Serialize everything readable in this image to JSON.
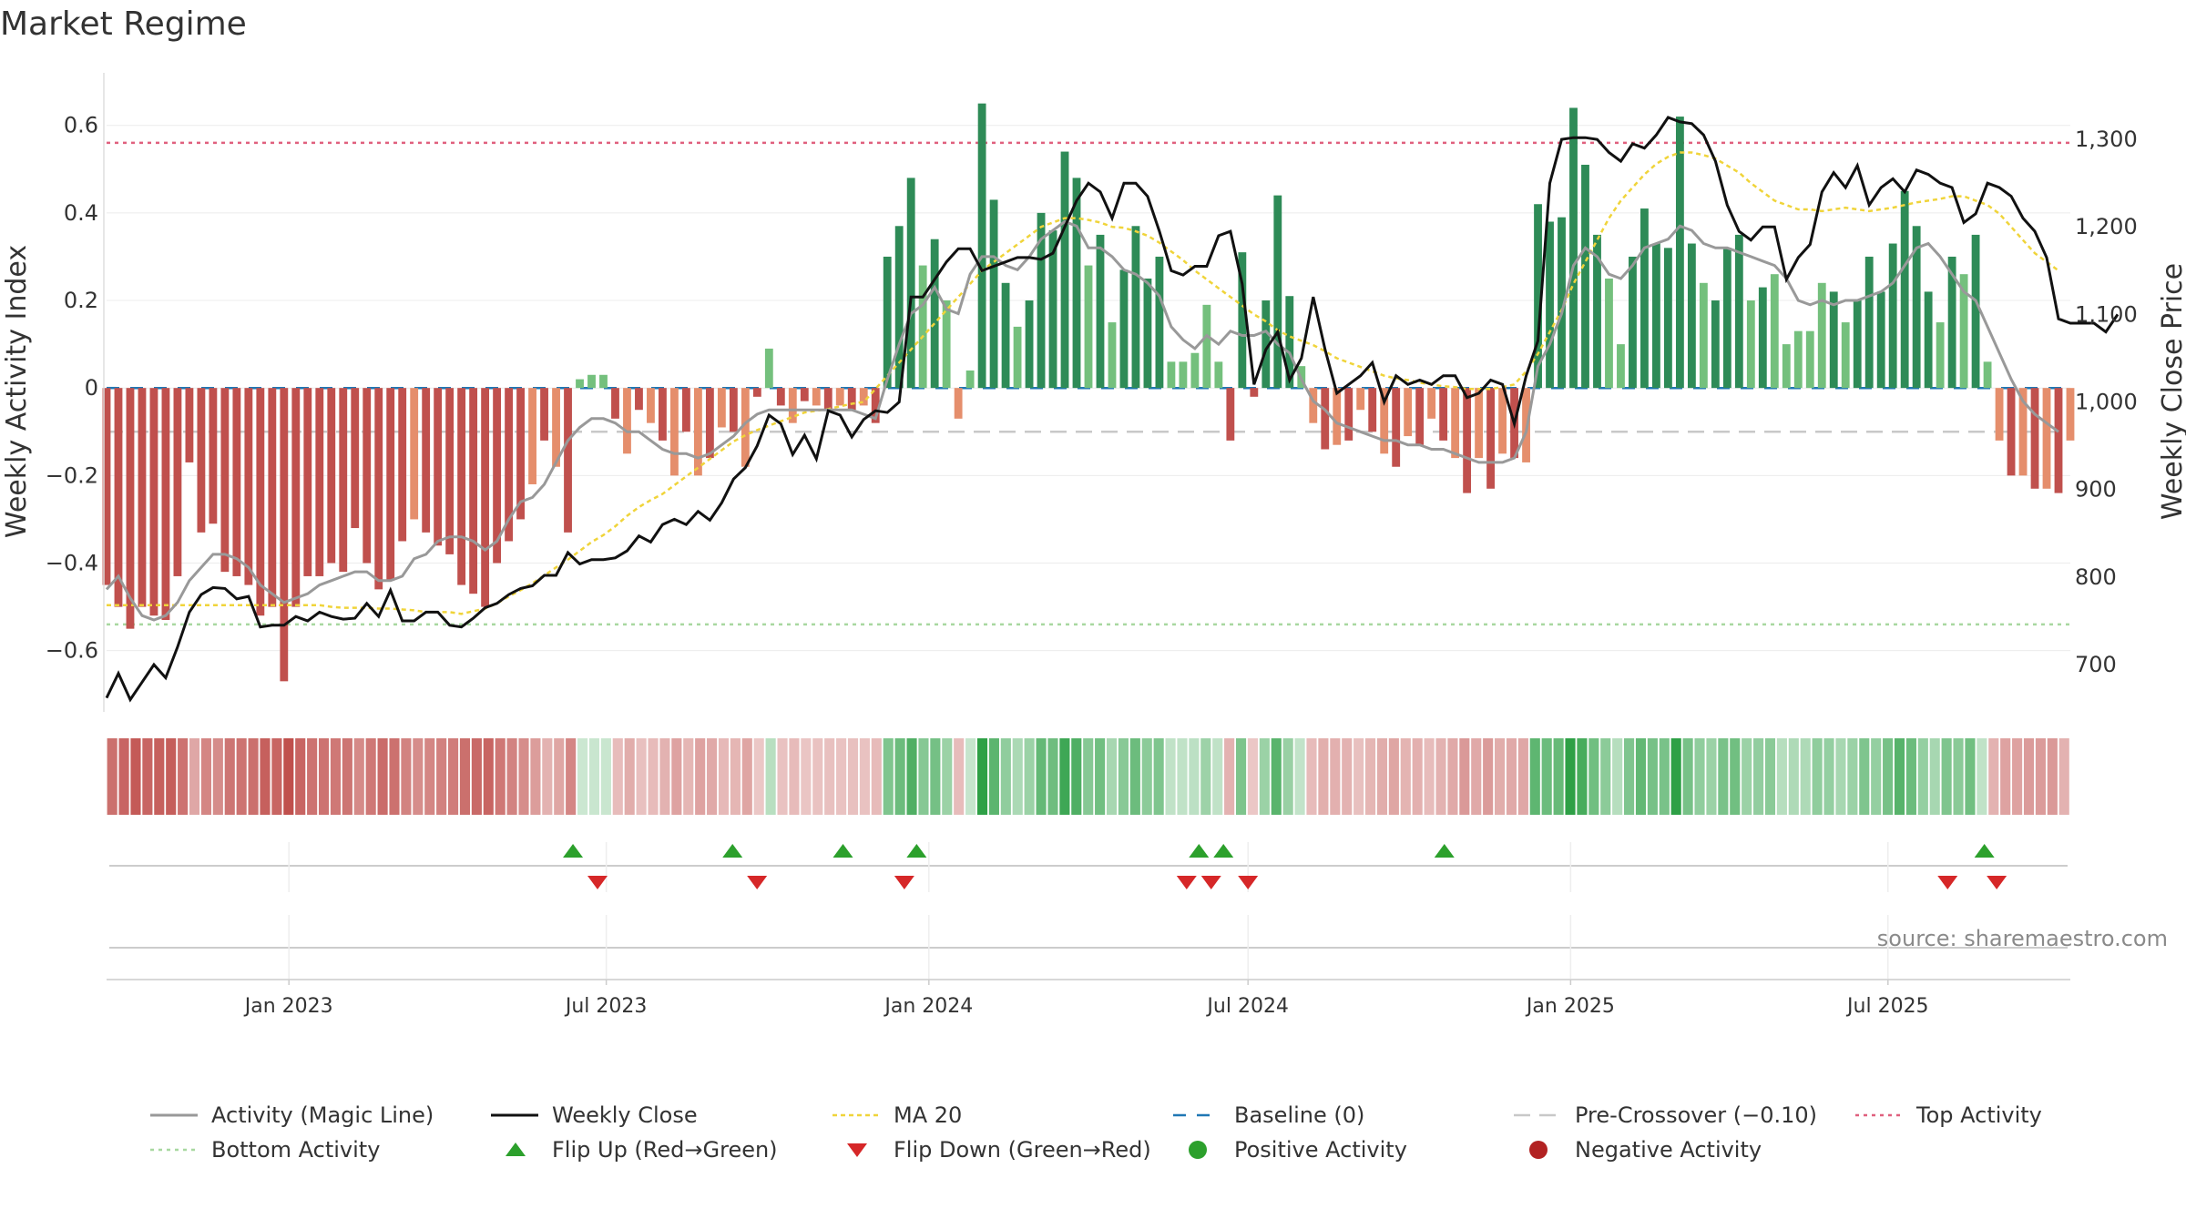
{
  "chart_data": {
    "type": "bar",
    "title": "Market Regime",
    "ylabel_left": "Weekly Activity Index",
    "ylabel_right": "Weekly Close Price",
    "source_text": "source: sharemaestro.com",
    "y_left": {
      "min": -0.74,
      "max": 0.72,
      "ticks": [
        0.6,
        0.4,
        0.2,
        0,
        -0.2,
        -0.4,
        -0.6
      ],
      "tick_labels": [
        "0.6",
        "0.4",
        "0.2",
        "0",
        "−0.2",
        "−0.4",
        "−0.6"
      ]
    },
    "y_right": {
      "min": 646,
      "max": 1376,
      "ticks": [
        1300,
        1200,
        1100,
        1000,
        900,
        800,
        700
      ],
      "tick_labels": [
        "1,300",
        "1,200",
        "1,100",
        "1,000",
        "900",
        "800",
        "700"
      ]
    },
    "date_axis": {
      "start": "2022-09-19",
      "end": "2025-10-13",
      "ticks": [
        "2023-01-01",
        "2023-07-01",
        "2024-01-01",
        "2024-07-01",
        "2025-01-01",
        "2025-07-01"
      ],
      "tick_labels": [
        "Jan 2023",
        "Jul 2023",
        "Jan 2024",
        "Jul 2024",
        "Jan 2025",
        "Jul 2025"
      ]
    },
    "reference_lines": {
      "top_activity": 0.56,
      "bottom_activity": -0.54,
      "pre_crossover": -0.1,
      "baseline": 0
    },
    "colors": {
      "strong_red": "#c0504d",
      "light_red": "#e58e6c",
      "strong_green": "#2e8b57",
      "light_green": "#74c07d",
      "magic_line": "#999999",
      "close": "#111111",
      "ma20": "#f0d43a",
      "baseline": "#1f77b4",
      "pre_crossover": "#c8c8c8",
      "top_activity": "#e0607e",
      "bottom_activity": "#a8d8a0",
      "flip_up": "#2ca02c",
      "flip_down": "#d62728",
      "positive_dot": "#2ca02c",
      "negative_dot": "#b22222"
    },
    "series": [
      {
        "name": "Weekly Activity Index",
        "type": "bar",
        "values": [
          -0.45,
          -0.5,
          -0.55,
          -0.5,
          -0.52,
          -0.53,
          -0.43,
          -0.17,
          -0.33,
          -0.31,
          -0.42,
          -0.43,
          -0.45,
          -0.52,
          -0.5,
          -0.67,
          -0.5,
          -0.43,
          -0.43,
          -0.4,
          -0.42,
          -0.32,
          -0.4,
          -0.46,
          -0.44,
          -0.35,
          -0.3,
          -0.33,
          -0.36,
          -0.38,
          -0.45,
          -0.47,
          -0.5,
          -0.4,
          -0.35,
          -0.3,
          -0.22,
          -0.12,
          -0.18,
          -0.33,
          0.02,
          0.03,
          0.03,
          -0.07,
          -0.15,
          -0.05,
          -0.08,
          -0.12,
          -0.2,
          -0.1,
          -0.2,
          -0.16,
          -0.09,
          -0.1,
          -0.18,
          -0.02,
          0.09,
          -0.04,
          -0.08,
          -0.03,
          -0.04,
          -0.05,
          -0.04,
          -0.05,
          -0.04,
          -0.08,
          0.3,
          0.37,
          0.48,
          0.28,
          0.34,
          0.2,
          -0.07,
          0.04,
          0.65,
          0.43,
          0.24,
          0.14,
          0.2,
          0.4,
          0.36,
          0.54,
          0.48,
          0.28,
          0.35,
          0.15,
          0.27,
          0.37,
          0.25,
          0.3,
          0.06,
          0.06,
          0.08,
          0.19,
          0.06,
          -0.12,
          0.31,
          -0.02,
          0.2,
          0.44,
          0.21,
          0.05,
          -0.08,
          -0.14,
          -0.13,
          -0.12,
          -0.05,
          -0.1,
          -0.15,
          -0.18,
          -0.11,
          -0.13,
          -0.07,
          -0.12,
          -0.16,
          -0.24,
          -0.16,
          -0.23,
          -0.15,
          -0.16,
          -0.17,
          0.42,
          0.38,
          0.39,
          0.64,
          0.51,
          0.35,
          0.25,
          0.1,
          0.3,
          0.41,
          0.33,
          0.32,
          0.62,
          0.33,
          0.24,
          0.2,
          0.32,
          0.35,
          0.2,
          0.23,
          0.26,
          0.1,
          0.13,
          0.13,
          0.24,
          0.22,
          0.15,
          0.2,
          0.3,
          0.22,
          0.33,
          0.45,
          0.37,
          0.22,
          0.15,
          0.3,
          0.26,
          0.35,
          0.06,
          -0.12,
          -0.2,
          -0.2,
          -0.23,
          -0.23,
          -0.24,
          -0.12
        ]
      },
      {
        "name": "Activity (Magic Line)",
        "type": "line",
        "values": [
          -0.46,
          -0.43,
          -0.48,
          -0.52,
          -0.53,
          -0.52,
          -0.49,
          -0.44,
          -0.41,
          -0.38,
          -0.38,
          -0.39,
          -0.41,
          -0.45,
          -0.47,
          -0.49,
          -0.48,
          -0.47,
          -0.45,
          -0.44,
          -0.43,
          -0.42,
          -0.42,
          -0.44,
          -0.44,
          -0.43,
          -0.39,
          -0.38,
          -0.35,
          -0.34,
          -0.34,
          -0.35,
          -0.37,
          -0.35,
          -0.3,
          -0.26,
          -0.25,
          -0.22,
          -0.17,
          -0.12,
          -0.09,
          -0.07,
          -0.07,
          -0.08,
          -0.1,
          -0.1,
          -0.12,
          -0.14,
          -0.15,
          -0.15,
          -0.16,
          -0.15,
          -0.13,
          -0.11,
          -0.08,
          -0.06,
          -0.05,
          -0.05,
          -0.05,
          -0.05,
          -0.05,
          -0.05,
          -0.05,
          -0.05,
          -0.06,
          -0.07,
          0.02,
          0.1,
          0.17,
          0.19,
          0.23,
          0.18,
          0.17,
          0.26,
          0.3,
          0.3,
          0.28,
          0.27,
          0.3,
          0.34,
          0.36,
          0.38,
          0.37,
          0.32,
          0.32,
          0.3,
          0.27,
          0.26,
          0.24,
          0.21,
          0.14,
          0.11,
          0.09,
          0.12,
          0.1,
          0.13,
          0.12,
          0.12,
          0.13,
          0.1,
          0.08,
          0.02,
          -0.03,
          -0.05,
          -0.08,
          -0.09,
          -0.1,
          -0.11,
          -0.12,
          -0.12,
          -0.13,
          -0.13,
          -0.14,
          -0.14,
          -0.15,
          -0.16,
          -0.17,
          -0.17,
          -0.17,
          -0.16,
          -0.1,
          0.05,
          0.1,
          0.17,
          0.28,
          0.32,
          0.3,
          0.26,
          0.25,
          0.28,
          0.32,
          0.33,
          0.34,
          0.37,
          0.36,
          0.33,
          0.32,
          0.32,
          0.31,
          0.3,
          0.29,
          0.28,
          0.25,
          0.2,
          0.19,
          0.2,
          0.19,
          0.2,
          0.2,
          0.21,
          0.22,
          0.24,
          0.28,
          0.32,
          0.33,
          0.3,
          0.26,
          0.22,
          0.2,
          0.14,
          0.08,
          0.02,
          -0.03,
          -0.06,
          -0.08,
          -0.1
        ]
      },
      {
        "name": "Weekly Close",
        "type": "line",
        "axis": "right",
        "values": [
          662,
          690,
          660,
          680,
          700,
          685,
          720,
          760,
          780,
          788,
          787,
          775,
          778,
          743,
          745,
          745,
          755,
          750,
          760,
          755,
          752,
          753,
          770,
          755,
          785,
          750,
          750,
          760,
          760,
          745,
          743,
          753,
          765,
          770,
          780,
          787,
          790,
          802,
          802,
          828,
          815,
          820,
          820,
          822,
          830,
          847,
          840,
          860,
          866,
          860,
          875,
          865,
          885,
          912,
          925,
          950,
          985,
          975,
          940,
          962,
          935,
          990,
          985,
          960,
          980,
          990,
          988,
          1000,
          1120,
          1120,
          1140,
          1160,
          1175,
          1175,
          1150,
          1155,
          1160,
          1165,
          1165,
          1163,
          1170,
          1200,
          1230,
          1250,
          1240,
          1210,
          1250,
          1250,
          1235,
          1195,
          1150,
          1145,
          1155,
          1155,
          1190,
          1195,
          1135,
          1020,
          1060,
          1080,
          1025,
          1050,
          1120,
          1060,
          1010,
          1020,
          1030,
          1045,
          1000,
          1030,
          1020,
          1025,
          1020,
          1030,
          1030,
          1005,
          1010,
          1025,
          1020,
          975,
          1030,
          1070,
          1250,
          1300,
          1302,
          1302,
          1300,
          1285,
          1275,
          1295,
          1290,
          1305,
          1325,
          1320,
          1318,
          1305,
          1275,
          1225,
          1195,
          1185,
          1200,
          1200,
          1140,
          1165,
          1180,
          1240,
          1262,
          1245,
          1270,
          1225,
          1245,
          1255,
          1240,
          1265,
          1260,
          1250,
          1245,
          1205,
          1215,
          1250,
          1245,
          1235,
          1210,
          1195,
          1165,
          1095,
          1090,
          1090,
          1090,
          1080,
          1100
        ]
      },
      {
        "name": "MA 20",
        "type": "line",
        "axis": "right",
        "values": [
          768,
          768,
          768,
          768,
          768,
          768,
          768,
          768,
          768,
          768,
          768,
          768,
          768,
          768,
          768,
          768,
          768,
          768,
          768,
          766,
          765,
          765,
          765,
          764,
          764,
          763,
          762,
          760,
          760,
          760,
          758,
          761,
          764,
          770,
          778,
          785,
          793,
          802,
          811,
          820,
          830,
          840,
          848,
          858,
          870,
          880,
          888,
          895,
          905,
          915,
          925,
          935,
          945,
          955,
          962,
          968,
          973,
          978,
          983,
          988,
          990,
          992,
          995,
          998,
          1000,
          1015,
          1030,
          1045,
          1060,
          1075,
          1090,
          1105,
          1120,
          1135,
          1150,
          1160,
          1170,
          1180,
          1190,
          1200,
          1205,
          1210,
          1210,
          1208,
          1205,
          1200,
          1199,
          1195,
          1190,
          1182,
          1172,
          1162,
          1150,
          1140,
          1130,
          1120,
          1110,
          1100,
          1092,
          1082,
          1075,
          1070,
          1065,
          1058,
          1050,
          1045,
          1040,
          1035,
          1030,
          1027,
          1025,
          1022,
          1020,
          1018,
          1017,
          1015,
          1015,
          1015,
          1017,
          1020,
          1035,
          1055,
          1080,
          1105,
          1135,
          1160,
          1185,
          1210,
          1230,
          1245,
          1260,
          1272,
          1280,
          1285,
          1285,
          1282,
          1278,
          1270,
          1262,
          1250,
          1240,
          1230,
          1225,
          1220,
          1220,
          1218,
          1220,
          1222,
          1220,
          1218,
          1220,
          1222,
          1225,
          1228,
          1230,
          1232,
          1235,
          1235,
          1230,
          1225,
          1215,
          1200,
          1185,
          1170,
          1160,
          1150
        ]
      }
    ],
    "flip_up_dates": [
      "2023-06-12",
      "2023-09-11",
      "2023-11-13",
      "2023-12-25",
      "2024-06-03",
      "2024-06-17",
      "2024-10-21",
      "2025-08-25"
    ],
    "flip_down_dates": [
      "2023-06-26",
      "2023-09-25",
      "2023-12-18",
      "2024-05-27",
      "2024-06-10",
      "2024-07-01",
      "2025-08-04",
      "2025-09-01"
    ],
    "legend": [
      {
        "key": "magic",
        "label": "Activity (Magic Line)"
      },
      {
        "key": "close",
        "label": "Weekly Close"
      },
      {
        "key": "ma20",
        "label": "MA 20"
      },
      {
        "key": "baseline",
        "label": "Baseline (0)"
      },
      {
        "key": "precross",
        "label": "Pre-Crossover (−0.10)"
      },
      {
        "key": "top",
        "label": "Top Activity"
      },
      {
        "key": "bottom",
        "label": "Bottom Activity"
      },
      {
        "key": "flipup",
        "label": "Flip Up (Red→Green)"
      },
      {
        "key": "flipdown",
        "label": "Flip Down (Green→Red)"
      },
      {
        "key": "posdot",
        "label": "Positive Activity"
      },
      {
        "key": "negdot",
        "label": "Negative Activity"
      }
    ]
  }
}
